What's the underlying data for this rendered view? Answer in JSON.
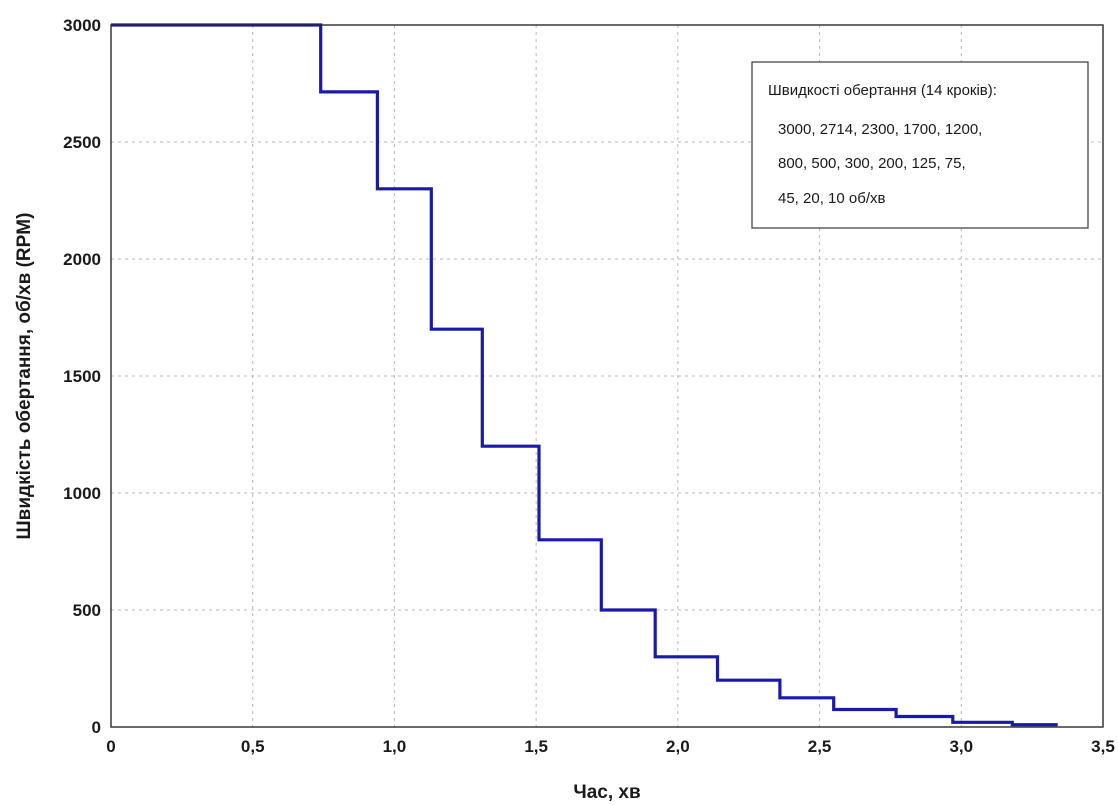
{
  "chart_data": {
    "type": "line",
    "step": true,
    "title": "",
    "xlabel": "Час, хв",
    "ylabel": "Швидкість обертання, об/хв (RPM)",
    "xlim": [
      0,
      3.5
    ],
    "ylim": [
      0,
      3000
    ],
    "xticks": [
      0,
      0.5,
      1.0,
      1.5,
      2.0,
      2.5,
      3.0,
      3.5
    ],
    "xtick_labels": [
      "0",
      "0,5",
      "1,0",
      "1,5",
      "2,0",
      "2,5",
      "3,0",
      "3,5"
    ],
    "yticks": [
      0,
      500,
      1000,
      1500,
      2000,
      2500,
      3000
    ],
    "ytick_labels": [
      "0",
      "500",
      "1000",
      "1500",
      "2000",
      "2500",
      "3000"
    ],
    "grid": true,
    "line_color": "#1a1aa8",
    "series": [
      {
        "x": [
          0,
          0.74,
          0.74,
          0.94,
          0.94,
          1.13,
          1.13,
          1.31,
          1.31,
          1.51,
          1.51,
          1.73,
          1.73,
          1.92,
          1.92,
          2.14,
          2.14,
          2.36,
          2.36,
          2.55,
          2.55,
          2.77,
          2.77,
          2.97,
          2.97,
          3.18,
          3.18,
          3.34
        ],
        "y": [
          3000,
          3000,
          2714,
          2714,
          2300,
          2300,
          1700,
          1700,
          1200,
          1200,
          800,
          800,
          500,
          500,
          300,
          300,
          200,
          200,
          125,
          125,
          75,
          75,
          45,
          45,
          20,
          20,
          10,
          10
        ]
      }
    ],
    "legend": {
      "position": "top-right",
      "lines": [
        "Швидкості обертання (14 кроків):",
        "3000, 2714, 2300, 1700, 1200,",
        "800, 500, 300, 200, 125, 75,",
        "45, 20, 10 об/хв"
      ]
    }
  }
}
